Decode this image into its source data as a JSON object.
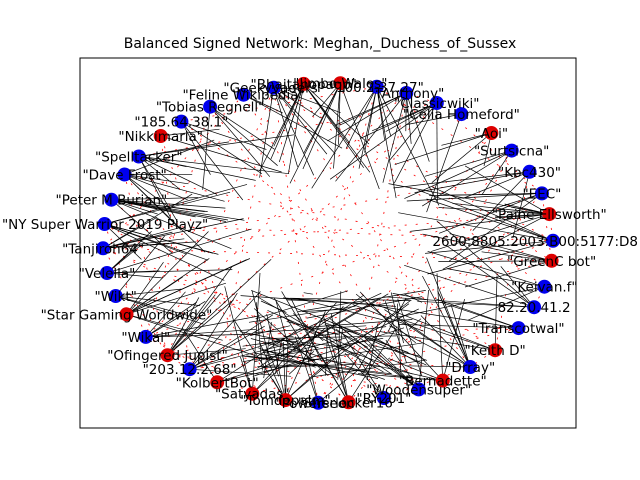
{
  "title": "Balanced Signed Network: Meghan,_Duchess_of_Sussex",
  "colors": {
    "positive_node": "#0000ee",
    "negative_node": "#dd0000",
    "positive_edge": "#000000",
    "negative_edge": "#ff0000",
    "frame": "#000000"
  },
  "nodes": [
    {
      "label": "\"Geekyvaders\"",
      "group": "blue"
    },
    {
      "label": "\"Bhaitanopaop\"",
      "group": "red"
    },
    {
      "label": "\"Jimbo Wales\"",
      "group": "red"
    },
    {
      "label": "\"100.2.37.27\"",
      "group": "blue"
    },
    {
      "label": "\"TAnthony\"",
      "group": "blue"
    },
    {
      "label": "\"Classicwiki\"",
      "group": "blue"
    },
    {
      "label": "\"Celia Homeford\"",
      "group": "blue"
    },
    {
      "label": "\"Aoi\"",
      "group": "red"
    },
    {
      "label": "\"Surtsicna\"",
      "group": "blue"
    },
    {
      "label": "\"Kbc430\"",
      "group": "blue"
    },
    {
      "label": "\"EEC\"",
      "group": "blue"
    },
    {
      "label": "\"Paine Ellsworth\"",
      "group": "red"
    },
    {
      "label": "2600:8805:2003:B00:5177:D8",
      "group": "blue"
    },
    {
      "label": "\"GreenC bot\"",
      "group": "red"
    },
    {
      "label": "\"Keivan.f\"",
      "group": "blue"
    },
    {
      "label": "82.20.41.2",
      "group": "blue"
    },
    {
      "label": "\"Transcotwal\"",
      "group": "blue"
    },
    {
      "label": "\"Keith D\"",
      "group": "red"
    },
    {
      "label": "\"Drray\"",
      "group": "blue"
    },
    {
      "label": "\"Bernadette\"",
      "group": "red"
    },
    {
      "label": "\"Woodensuper\"",
      "group": "blue"
    },
    {
      "label": "\"RY201\"",
      "group": "blue"
    },
    {
      "label": "\"Sherlocker16\"",
      "group": "red"
    },
    {
      "label": "\"Powerseen\"",
      "group": "blue"
    },
    {
      "label": "\"Tomdepalm\"",
      "group": "red"
    },
    {
      "label": "\"Satyadas\"",
      "group": "red"
    },
    {
      "label": "\"KolbertBot\"",
      "group": "red"
    },
    {
      "label": "\"203.12.2.68\"",
      "group": "blue"
    },
    {
      "label": "\"Ofingered Jupist\"",
      "group": "red"
    },
    {
      "label": "\"Wikai\"",
      "group": "blue"
    },
    {
      "label": "\"Star Gaming Worldwide\"",
      "group": "red"
    },
    {
      "label": "\"Wikt\"",
      "group": "blue"
    },
    {
      "label": "\"Velella\"",
      "group": "blue"
    },
    {
      "label": "\"Tanjiroh64\"",
      "group": "blue"
    },
    {
      "label": "\"NY Super Warrior 2019 Playz\"",
      "group": "blue"
    },
    {
      "label": "\"Peter M Burian\"",
      "group": "blue"
    },
    {
      "label": "\"Dave Frost\"",
      "group": "blue"
    },
    {
      "label": "\"Spelltacker\"",
      "group": "blue"
    },
    {
      "label": "\"Nikkimaria\"",
      "group": "red"
    },
    {
      "label": "\"185.64.38.1\"",
      "group": "blue"
    },
    {
      "label": "\"Tobias Regnell\"",
      "group": "blue"
    },
    {
      "label": "\"Feline Wikipedia\"",
      "group": "blue"
    }
  ]
}
